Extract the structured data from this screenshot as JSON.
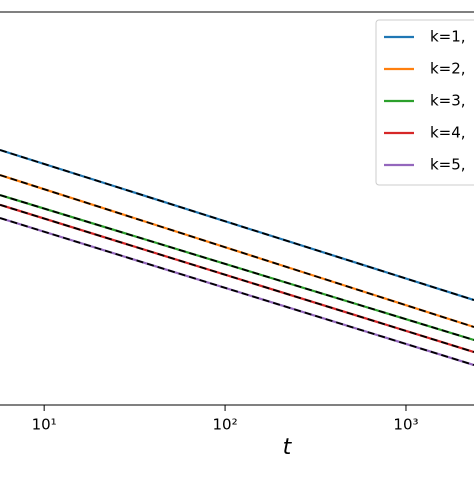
{
  "chart_data": {
    "type": "line",
    "x_label": "t",
    "log_x": true,
    "log_y": true,
    "xlim": [
      5.7,
      2377
    ],
    "ylim": [
      0.0001,
      1
    ],
    "xticks": [
      {
        "value": 10,
        "label": "10¹"
      },
      {
        "value": 100,
        "label": "10²"
      },
      {
        "value": 1000,
        "label": "10³"
      }
    ],
    "x": [
      5.7,
      2377
    ],
    "series": [
      {
        "name": "k=1,",
        "color": "#1f77b4",
        "values": [
          0.0394,
          0.00117
        ]
      },
      {
        "name": "k=2,",
        "color": "#ff7f0e",
        "values": [
          0.0219,
          0.000622
        ]
      },
      {
        "name": "k=3,",
        "color": "#2ca02c",
        "values": [
          0.0137,
          0.000459
        ]
      },
      {
        "name": "k=4,",
        "color": "#d62728",
        "values": [
          0.0109,
          0.000346
        ]
      },
      {
        "name": "k=5,",
        "color": "#9467bd",
        "values": [
          0.008,
          0.000255
        ]
      }
    ],
    "overlay": {
      "color": "#000000",
      "dash": "7,4"
    },
    "legend": "upper-right"
  }
}
